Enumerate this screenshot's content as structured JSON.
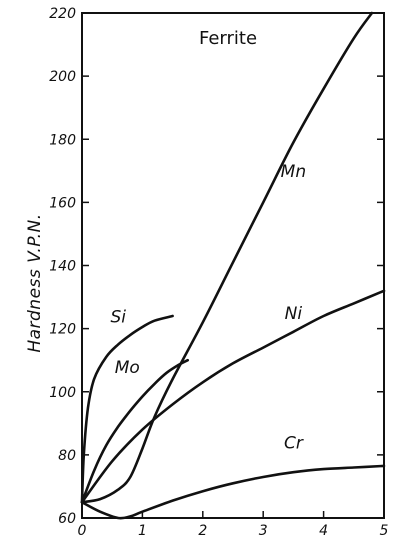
{
  "chart_data": {
    "type": "line",
    "title": "Ferrite",
    "xlabel": "",
    "ylabel": "Hardness  V.P.N.",
    "xlim": [
      0,
      5
    ],
    "ylim": [
      60,
      220
    ],
    "x_ticks": [
      "0",
      "1",
      "2",
      "3",
      "4",
      "5"
    ],
    "y_ticks": [
      "60",
      "80",
      "100",
      "120",
      "140",
      "160",
      "180",
      "200",
      "220"
    ],
    "grid": false,
    "series": [
      {
        "name": "Si",
        "x": [
          0,
          0.03,
          0.1,
          0.2,
          0.4,
          0.6,
          0.8,
          1.0,
          1.2,
          1.5
        ],
        "y": [
          65,
          80,
          95,
          104,
          111,
          115,
          118,
          120.5,
          122.5,
          124
        ]
      },
      {
        "name": "Mo",
        "x": [
          0,
          0.2,
          0.4,
          0.6,
          0.8,
          1.0,
          1.2,
          1.4,
          1.6,
          1.75
        ],
        "y": [
          65,
          75,
          83,
          89,
          94,
          98.5,
          102.5,
          106,
          108.5,
          110
        ]
      },
      {
        "name": "Mn",
        "x": [
          0,
          0.3,
          0.6,
          0.8,
          1.0,
          1.2,
          1.5,
          2.0,
          2.5,
          3.0,
          3.5,
          4.0,
          4.5,
          4.8
        ],
        "y": [
          65,
          66,
          69,
          73,
          82,
          92,
          104,
          122,
          141,
          160,
          179,
          196,
          212,
          220
        ]
      },
      {
        "name": "Ni",
        "x": [
          0,
          0.5,
          1.0,
          1.5,
          2.0,
          2.5,
          3.0,
          3.5,
          4.0,
          4.5,
          5.0
        ],
        "y": [
          65,
          78,
          88,
          96,
          103,
          109,
          114,
          119,
          124,
          128,
          132
        ]
      },
      {
        "name": "Cr",
        "x": [
          0,
          0.3,
          0.6,
          0.8,
          1.0,
          1.5,
          2.0,
          2.5,
          3.0,
          3.5,
          4.0,
          4.5,
          5.0
        ],
        "y": [
          65,
          62,
          60,
          60.5,
          62,
          65.5,
          68.5,
          71,
          73,
          74.5,
          75.5,
          76,
          76.5
        ]
      }
    ],
    "series_label_anchors": {
      "Si": {
        "x": 0.6,
        "y": 122
      },
      "Mo": {
        "x": 0.75,
        "y": 106
      },
      "Mn": {
        "x": 3.5,
        "y": 168
      },
      "Ni": {
        "x": 3.5,
        "y": 123
      },
      "Cr": {
        "x": 3.5,
        "y": 82
      }
    },
    "line_color": "#111111"
  }
}
